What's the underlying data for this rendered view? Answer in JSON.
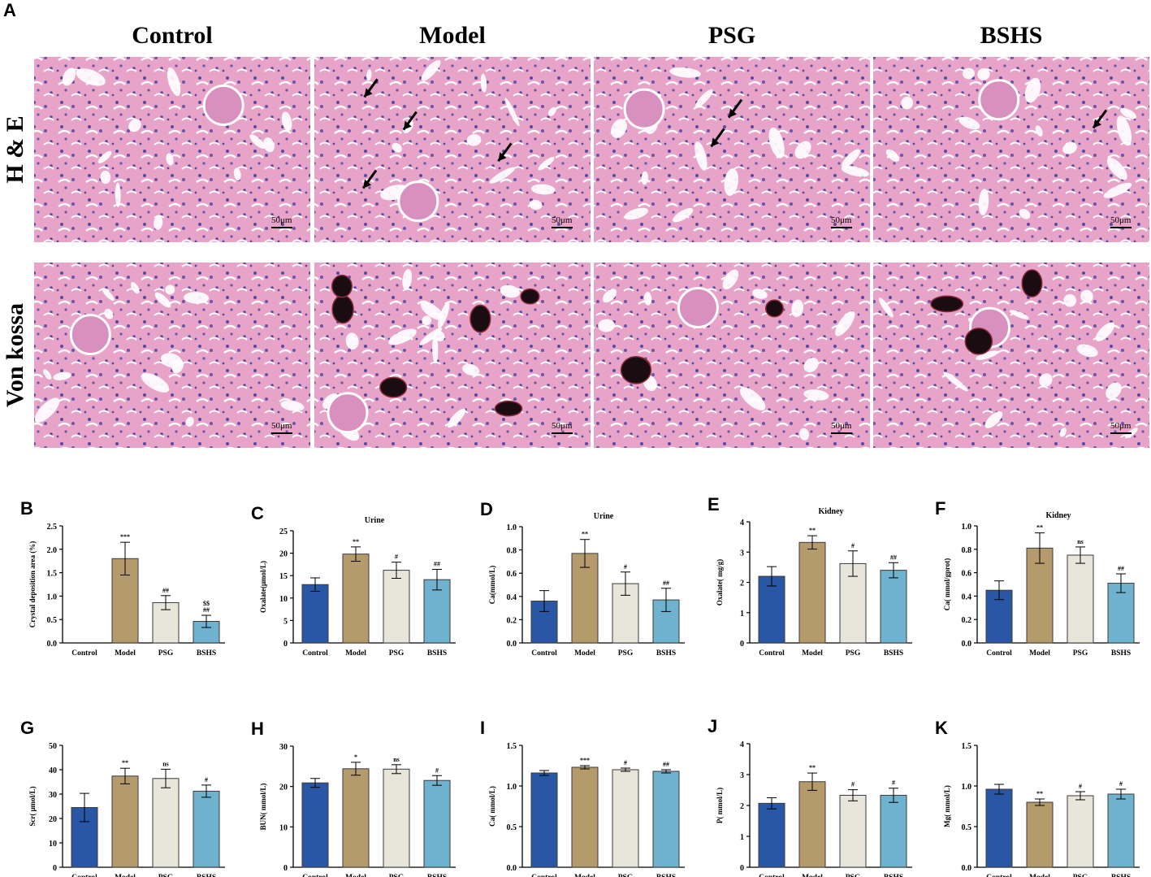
{
  "panel_a": {
    "letter": "A",
    "columns": [
      "Control",
      "Model",
      "PSG",
      "BSHS"
    ],
    "rows": [
      "H & E",
      "Von kossa"
    ],
    "scale_bar_label": "50μm"
  },
  "colors": {
    "Control": "#2a57a5",
    "Model": "#b59a6b",
    "PSG": "#e8e6da",
    "BSHS": "#6fb2cf",
    "tissue_bg": "#e9a6c9",
    "nuclei": "#4b3f9c",
    "crystal": "#1a0d12"
  },
  "chart_data": [
    {
      "letter": "B",
      "type": "bar",
      "title": "",
      "ylabel": "Crystal deposition area (%)",
      "ylim": [
        0,
        2.5
      ],
      "yticks": [
        "0.0",
        "0.5",
        "1.0",
        "1.5",
        "2.0",
        "2.5"
      ],
      "categories": [
        "Control",
        "Model",
        "PSG",
        "BSHS"
      ],
      "values": [
        0,
        1.8,
        0.86,
        0.46
      ],
      "errors": [
        0,
        0.35,
        0.15,
        0.13
      ],
      "annotations": [
        "",
        "***",
        "##",
        "$$\n##"
      ]
    },
    {
      "letter": "C",
      "type": "bar",
      "title": "Urine",
      "ylabel": "Oxalate(μmol/L)",
      "ylim": [
        0,
        25
      ],
      "yticks": [
        "0",
        "5",
        "10",
        "15",
        "20",
        "25"
      ],
      "categories": [
        "Control",
        "Model",
        "PSG",
        "BSHS"
      ],
      "values": [
        13,
        19.8,
        16.2,
        14.1
      ],
      "errors": [
        1.5,
        1.6,
        1.8,
        2.3
      ],
      "annotations": [
        "",
        "**",
        "#",
        "##"
      ]
    },
    {
      "letter": "D",
      "type": "bar",
      "title": "Urine",
      "ylabel": "Ca(mmol/L)",
      "ylim": [
        0,
        1.0
      ],
      "yticks": [
        "0.0",
        "0.2",
        "0.4",
        "0.6",
        "0.8",
        "1.0"
      ],
      "categories": [
        "Control",
        "Model",
        "PSG",
        "BSHS"
      ],
      "values": [
        0.36,
        0.77,
        0.51,
        0.37
      ],
      "errors": [
        0.09,
        0.12,
        0.1,
        0.1
      ],
      "annotations": [
        "",
        "**",
        "#",
        "##"
      ]
    },
    {
      "letter": "E",
      "type": "bar",
      "title": "Kidney",
      "ylabel": "Oxalate( mg/g)",
      "ylim": [
        0,
        4
      ],
      "yticks": [
        "0",
        "1",
        "2",
        "3",
        "4"
      ],
      "categories": [
        "Control",
        "Model",
        "PSG",
        "BSHS"
      ],
      "values": [
        2.2,
        3.32,
        2.62,
        2.4
      ],
      "errors": [
        0.32,
        0.22,
        0.42,
        0.25
      ],
      "annotations": [
        "",
        "**",
        "#",
        "##"
      ]
    },
    {
      "letter": "F",
      "type": "bar",
      "title": "Kidney",
      "ylabel": "Ca( mmol/gprot)",
      "ylim": [
        0,
        1.0
      ],
      "yticks": [
        "0.0",
        "0.2",
        "0.4",
        "0.6",
        "0.8",
        "1.0"
      ],
      "categories": [
        "Control",
        "Model",
        "PSG",
        "BSHS"
      ],
      "values": [
        0.45,
        0.81,
        0.75,
        0.51
      ],
      "errors": [
        0.08,
        0.13,
        0.07,
        0.08
      ],
      "annotations": [
        "",
        "**",
        "ns",
        "##"
      ]
    },
    {
      "letter": "G",
      "type": "bar",
      "title": "",
      "ylabel": "Scr( μmol/L)",
      "ylim": [
        0,
        50
      ],
      "yticks": [
        "0",
        "10",
        "20",
        "30",
        "40",
        "50"
      ],
      "categories": [
        "Control",
        "Model",
        "PSG",
        "BSHS"
      ],
      "values": [
        24.5,
        37.4,
        36.4,
        31.2
      ],
      "errors": [
        5.8,
        3.2,
        3.8,
        2.5
      ],
      "annotations": [
        "",
        "**",
        "ns",
        "#"
      ]
    },
    {
      "letter": "H",
      "type": "bar",
      "title": "",
      "ylabel": "BUN( mmol/L)",
      "ylim": [
        0,
        30
      ],
      "yticks": [
        "0",
        "10",
        "20",
        "30"
      ],
      "categories": [
        "Control",
        "Model",
        "PSG",
        "BSHS"
      ],
      "values": [
        20.9,
        24.4,
        24.3,
        21.5
      ],
      "errors": [
        1.1,
        1.6,
        1.1,
        1.2
      ],
      "annotations": [
        "",
        "*",
        "ns",
        "#"
      ]
    },
    {
      "letter": "I",
      "type": "bar",
      "title": "",
      "ylabel": "Ca( mmol/L)",
      "ylim": [
        0,
        1.5
      ],
      "yticks": [
        "0.0",
        "0.5",
        "1.0",
        "1.5"
      ],
      "categories": [
        "Control",
        "Model",
        "PSG",
        "BSHS"
      ],
      "values": [
        1.16,
        1.23,
        1.2,
        1.18
      ],
      "errors": [
        0.03,
        0.02,
        0.02,
        0.02
      ],
      "annotations": [
        "",
        "***",
        "#",
        "##"
      ]
    },
    {
      "letter": "J",
      "type": "bar",
      "title": "",
      "ylabel": "P( mmol/L)",
      "ylim": [
        0,
        4
      ],
      "yticks": [
        "0",
        "1",
        "2",
        "3",
        "4"
      ],
      "categories": [
        "Control",
        "Model",
        "PSG",
        "BSHS"
      ],
      "values": [
        2.07,
        2.77,
        2.33,
        2.33
      ],
      "errors": [
        0.18,
        0.28,
        0.18,
        0.23
      ],
      "annotations": [
        "",
        "**",
        "#",
        "#"
      ]
    },
    {
      "letter": "K",
      "type": "bar",
      "title": "",
      "ylabel": "Mg( mmol/L)",
      "ylim": [
        0,
        1.5
      ],
      "yticks": [
        "0.0",
        "0.5",
        "1.0",
        "1.5"
      ],
      "categories": [
        "Control",
        "Model",
        "PSG",
        "BSHS"
      ],
      "values": [
        0.96,
        0.8,
        0.88,
        0.9
      ],
      "errors": [
        0.06,
        0.04,
        0.05,
        0.06
      ],
      "annotations": [
        "",
        "**",
        "#",
        "#"
      ]
    }
  ]
}
